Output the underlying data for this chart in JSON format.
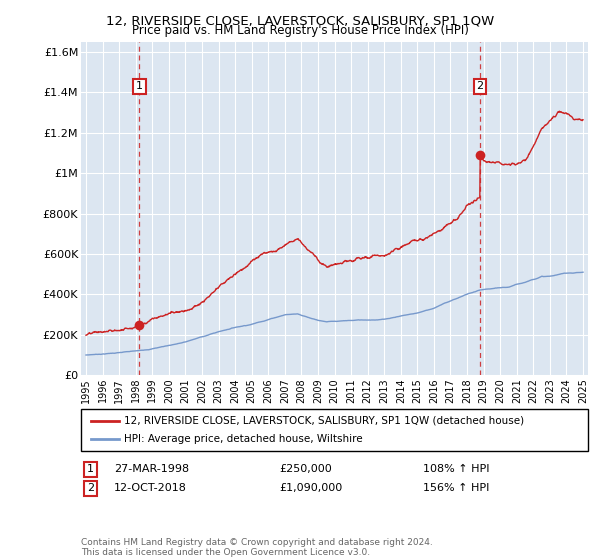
{
  "title": "12, RIVERSIDE CLOSE, LAVERSTOCK, SALISBURY, SP1 1QW",
  "subtitle": "Price paid vs. HM Land Registry's House Price Index (HPI)",
  "background_color": "#ffffff",
  "plot_bg_color": "#dce6f1",
  "grid_color": "#ffffff",
  "ylim": [
    0,
    1650000
  ],
  "yticks": [
    0,
    200000,
    400000,
    600000,
    800000,
    1000000,
    1200000,
    1400000,
    1600000
  ],
  "ytick_labels": [
    "£0",
    "£200K",
    "£400K",
    "£600K",
    "£800K",
    "£1M",
    "£1.2M",
    "£1.4M",
    "£1.6M"
  ],
  "xlim_start": 1994.7,
  "xlim_end": 2025.3,
  "xticks": [
    1995,
    1996,
    1997,
    1998,
    1999,
    2000,
    2001,
    2002,
    2003,
    2004,
    2005,
    2006,
    2007,
    2008,
    2009,
    2010,
    2011,
    2012,
    2013,
    2014,
    2015,
    2016,
    2017,
    2018,
    2019,
    2020,
    2021,
    2022,
    2023,
    2024,
    2025
  ],
  "house_line_color": "#cc2222",
  "hpi_line_color": "#7799cc",
  "marker1_date": 1998.23,
  "marker1_price": 250000,
  "marker2_date": 2018.78,
  "marker2_price": 1090000,
  "legend_house": "12, RIVERSIDE CLOSE, LAVERSTOCK, SALISBURY, SP1 1QW (detached house)",
  "legend_hpi": "HPI: Average price, detached house, Wiltshire",
  "footer": "Contains HM Land Registry data © Crown copyright and database right 2024.\nThis data is licensed under the Open Government Licence v3.0."
}
